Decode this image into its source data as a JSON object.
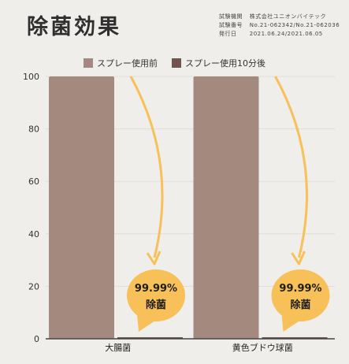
{
  "header": {
    "title": "除菌効果",
    "meta": [
      {
        "label": "試験機関",
        "value": "株式会社ユニオンバイテック"
      },
      {
        "label": "試験番号",
        "value": "No.21-062342/No.21-062036"
      },
      {
        "label": "発行日",
        "value": "2021.06.24/2021.06.05"
      }
    ]
  },
  "colors": {
    "before": "#a48a7e",
    "after": "#6e564c",
    "accent": "#f8c058",
    "axis": "#444444",
    "grid": "#e0ddd8"
  },
  "callout": {
    "percent": "99.99%",
    "label": "除菌"
  },
  "chart_data": {
    "type": "bar",
    "categories": [
      "大腸菌",
      "黄色ブドウ球菌"
    ],
    "series": [
      {
        "name": "スプレー使用前",
        "values": [
          100,
          100
        ]
      },
      {
        "name": "スプレー使用10分後",
        "values": [
          0.01,
          0.01
        ]
      }
    ],
    "ylim": [
      0,
      100
    ],
    "yticks": [
      0,
      20,
      40,
      60,
      80,
      100
    ],
    "legend_position": "top",
    "grid": true
  }
}
